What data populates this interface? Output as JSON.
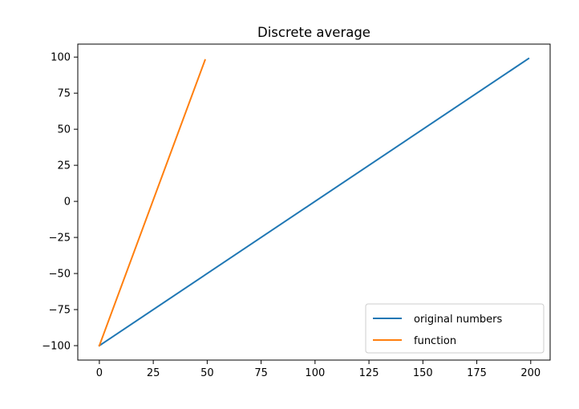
{
  "chart_data": {
    "type": "line",
    "title": "Discrete average",
    "xlabel": "",
    "ylabel": "",
    "xlim": [
      -10,
      209
    ],
    "ylim": [
      -110,
      109
    ],
    "xticks": [
      0,
      25,
      50,
      75,
      100,
      125,
      150,
      175,
      200
    ],
    "yticks": [
      100,
      75,
      50,
      25,
      0,
      -25,
      -50,
      -75,
      -100
    ],
    "xtick_labels": [
      "0",
      "25",
      "50",
      "75",
      "100",
      "125",
      "150",
      "175",
      "200"
    ],
    "ytick_labels": [
      "100",
      "75",
      "50",
      "25",
      "0",
      "−25",
      "−50",
      "−75",
      "−100"
    ],
    "grid": false,
    "legend_position": "lower-right",
    "series": [
      {
        "name": "original numbers",
        "color": "#1f77b4",
        "x": [
          0,
          199
        ],
        "y": [
          -100,
          99
        ]
      },
      {
        "name": "function",
        "color": "#ff7f0e",
        "x": [
          0,
          49
        ],
        "y": [
          -100,
          98
        ]
      }
    ]
  }
}
